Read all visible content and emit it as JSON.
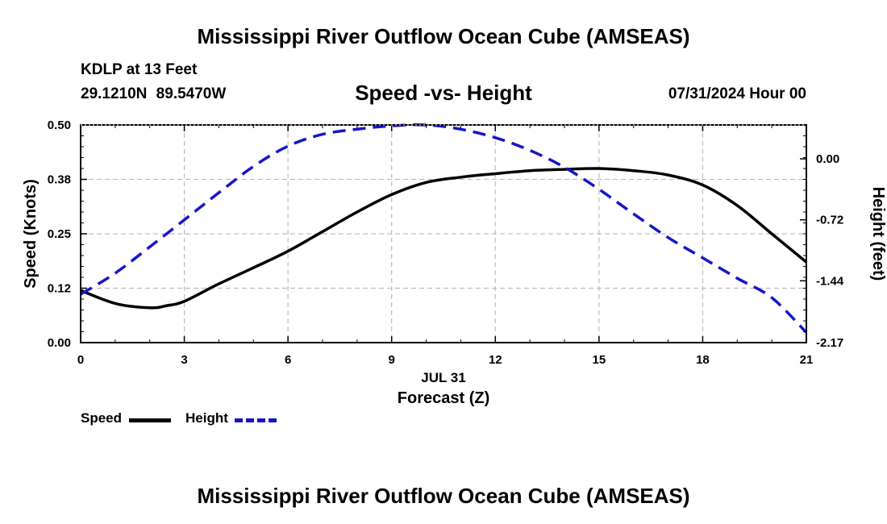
{
  "header": {
    "title": "Mississippi River Outflow Ocean Cube (AMSEAS)",
    "station": "KDLP at 13 Feet",
    "coords": "29.1210N 89.5470W",
    "datetime": "07/31/2024 Hour 00"
  },
  "footer": {
    "title": "Mississippi River Outflow Ocean Cube (AMSEAS)"
  },
  "legend": {
    "speed_label": "Speed",
    "height_label": "Height"
  },
  "colors": {
    "speed": "#000000",
    "height": "#1515c8",
    "grid": "#bdbdbd"
  },
  "chart_data": {
    "type": "line",
    "title": "Speed -vs- Height",
    "xlabel": "Forecast (Z)",
    "xsublabel": "JUL 31",
    "ylabel": "Speed (Knots)",
    "y2label": "Height (feet)",
    "xlim": [
      0,
      21
    ],
    "ylim": [
      0,
      0.5
    ],
    "y2lim": [
      -2.17,
      0.4
    ],
    "xticks": [
      0,
      3,
      6,
      9,
      12,
      15,
      18,
      21
    ],
    "xtick_labels": [
      "0",
      "3",
      "6",
      "9",
      "12",
      "15",
      "18",
      "21"
    ],
    "yticks": [
      0,
      0.125,
      0.25,
      0.375,
      0.5
    ],
    "ytick_labels": [
      "0.00",
      "0.12",
      "0.25",
      "0.38",
      "0.50"
    ],
    "y2ticks": [
      -2.17,
      -1.44,
      -0.72,
      0.0
    ],
    "y2tick_labels": [
      "-2.17",
      "-1.44",
      "-0.72",
      "0.00"
    ],
    "grid": true,
    "series": [
      {
        "name": "Speed",
        "axis": "left",
        "style": "solid",
        "x": [
          0,
          1,
          2,
          2.5,
          3,
          4,
          5,
          6,
          7,
          8,
          9,
          10,
          11,
          12,
          13,
          14,
          15,
          16,
          17,
          18,
          19,
          20,
          21
        ],
        "values": [
          0.12,
          0.09,
          0.08,
          0.085,
          0.095,
          0.135,
          0.172,
          0.21,
          0.255,
          0.3,
          0.34,
          0.368,
          0.38,
          0.388,
          0.395,
          0.398,
          0.4,
          0.395,
          0.385,
          0.362,
          0.315,
          0.25,
          0.185
        ]
      },
      {
        "name": "Height",
        "axis": "right",
        "style": "dashed",
        "x": [
          0,
          1,
          2,
          3,
          4,
          5,
          6,
          7,
          8,
          9,
          10,
          11,
          12,
          13,
          14,
          15,
          16,
          17,
          18,
          19,
          20,
          21
        ],
        "values": [
          -1.6,
          -1.35,
          -1.04,
          -0.72,
          -0.4,
          -0.09,
          0.15,
          0.29,
          0.35,
          0.39,
          0.4,
          0.35,
          0.25,
          0.1,
          -0.1,
          -0.36,
          -0.65,
          -0.93,
          -1.17,
          -1.41,
          -1.64,
          -2.05
        ]
      }
    ]
  }
}
